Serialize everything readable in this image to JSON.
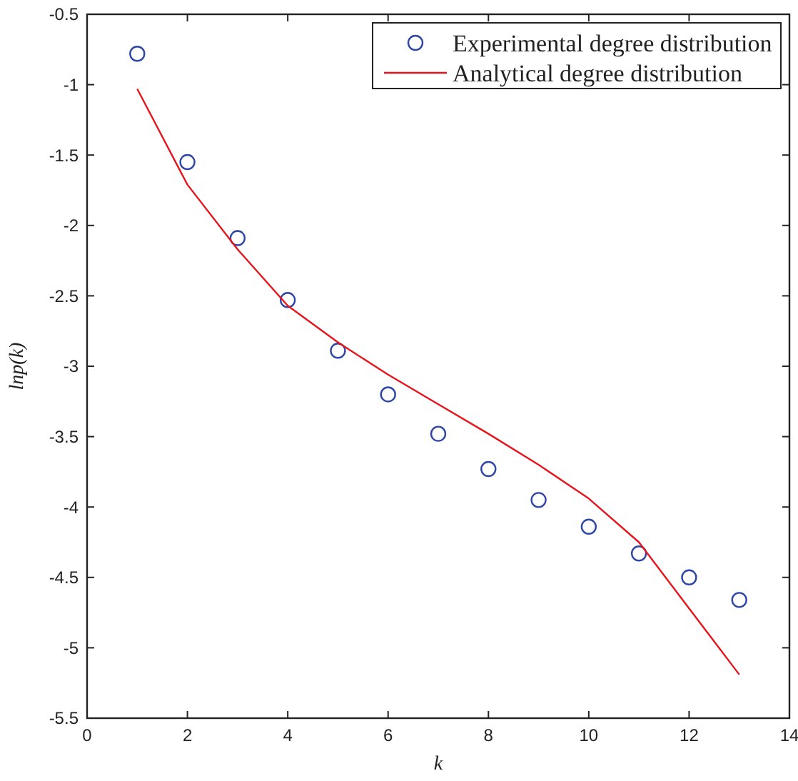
{
  "chart_data": {
    "type": "scatter",
    "xlabel": "k",
    "ylabel": "lnp(k)",
    "x": [
      1,
      2,
      3,
      4,
      5,
      6,
      7,
      8,
      9,
      10,
      11,
      12,
      13
    ],
    "series": [
      {
        "name": "Experimental degree distribution",
        "color": "#2e46a8",
        "marker": "circle",
        "values": [
          -0.78,
          -1.55,
          -2.09,
          -2.53,
          -2.89,
          -3.2,
          -3.48,
          -3.73,
          -3.95,
          -4.14,
          -4.33,
          -4.5,
          -4.66
        ]
      },
      {
        "name": "Analytical degree distribution",
        "type": "line",
        "color": "#e8141b",
        "marker": "none",
        "values": [
          -1.03,
          -1.71,
          -2.17,
          -2.57,
          -2.83,
          -3.06,
          -3.27,
          -3.48,
          -3.7,
          -3.94,
          -4.25,
          -4.72,
          -5.19
        ]
      }
    ],
    "xlim": [
      0,
      14
    ],
    "xticks": [
      0,
      2,
      4,
      6,
      8,
      10,
      12,
      14
    ],
    "ylim": [
      -5.5,
      -0.5
    ],
    "yticks": [
      -5.5,
      -5,
      -4.5,
      -4,
      -3.5,
      -3,
      -2.5,
      -2,
      -1.5,
      -1,
      -0.5
    ],
    "grid": false,
    "legend": "top right"
  }
}
